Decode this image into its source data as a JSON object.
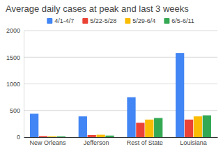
{
  "chart_data": {
    "type": "bar",
    "title": "Average daily cases at peak and last 3 weeks",
    "categories": [
      "New Orleans",
      "Jefferson",
      "Rest of State",
      "Louisiana"
    ],
    "series": [
      {
        "name": "4/1-4/7",
        "color": "#4285f4",
        "values": [
          440,
          390,
          750,
          1580
        ]
      },
      {
        "name": "5/22-5/28",
        "color": "#ea4335",
        "values": [
          20,
          40,
          270,
          330
        ]
      },
      {
        "name": "5/29-6/4",
        "color": "#fbbc04",
        "values": [
          15,
          45,
          330,
          390
        ]
      },
      {
        "name": "6/5-6/11",
        "color": "#34a853",
        "values": [
          15,
          30,
          360,
          410
        ]
      }
    ],
    "ylim": [
      0,
      2000
    ],
    "yticks": [
      0,
      500,
      1000,
      1500,
      2000
    ],
    "grid": true,
    "legend": "top"
  }
}
